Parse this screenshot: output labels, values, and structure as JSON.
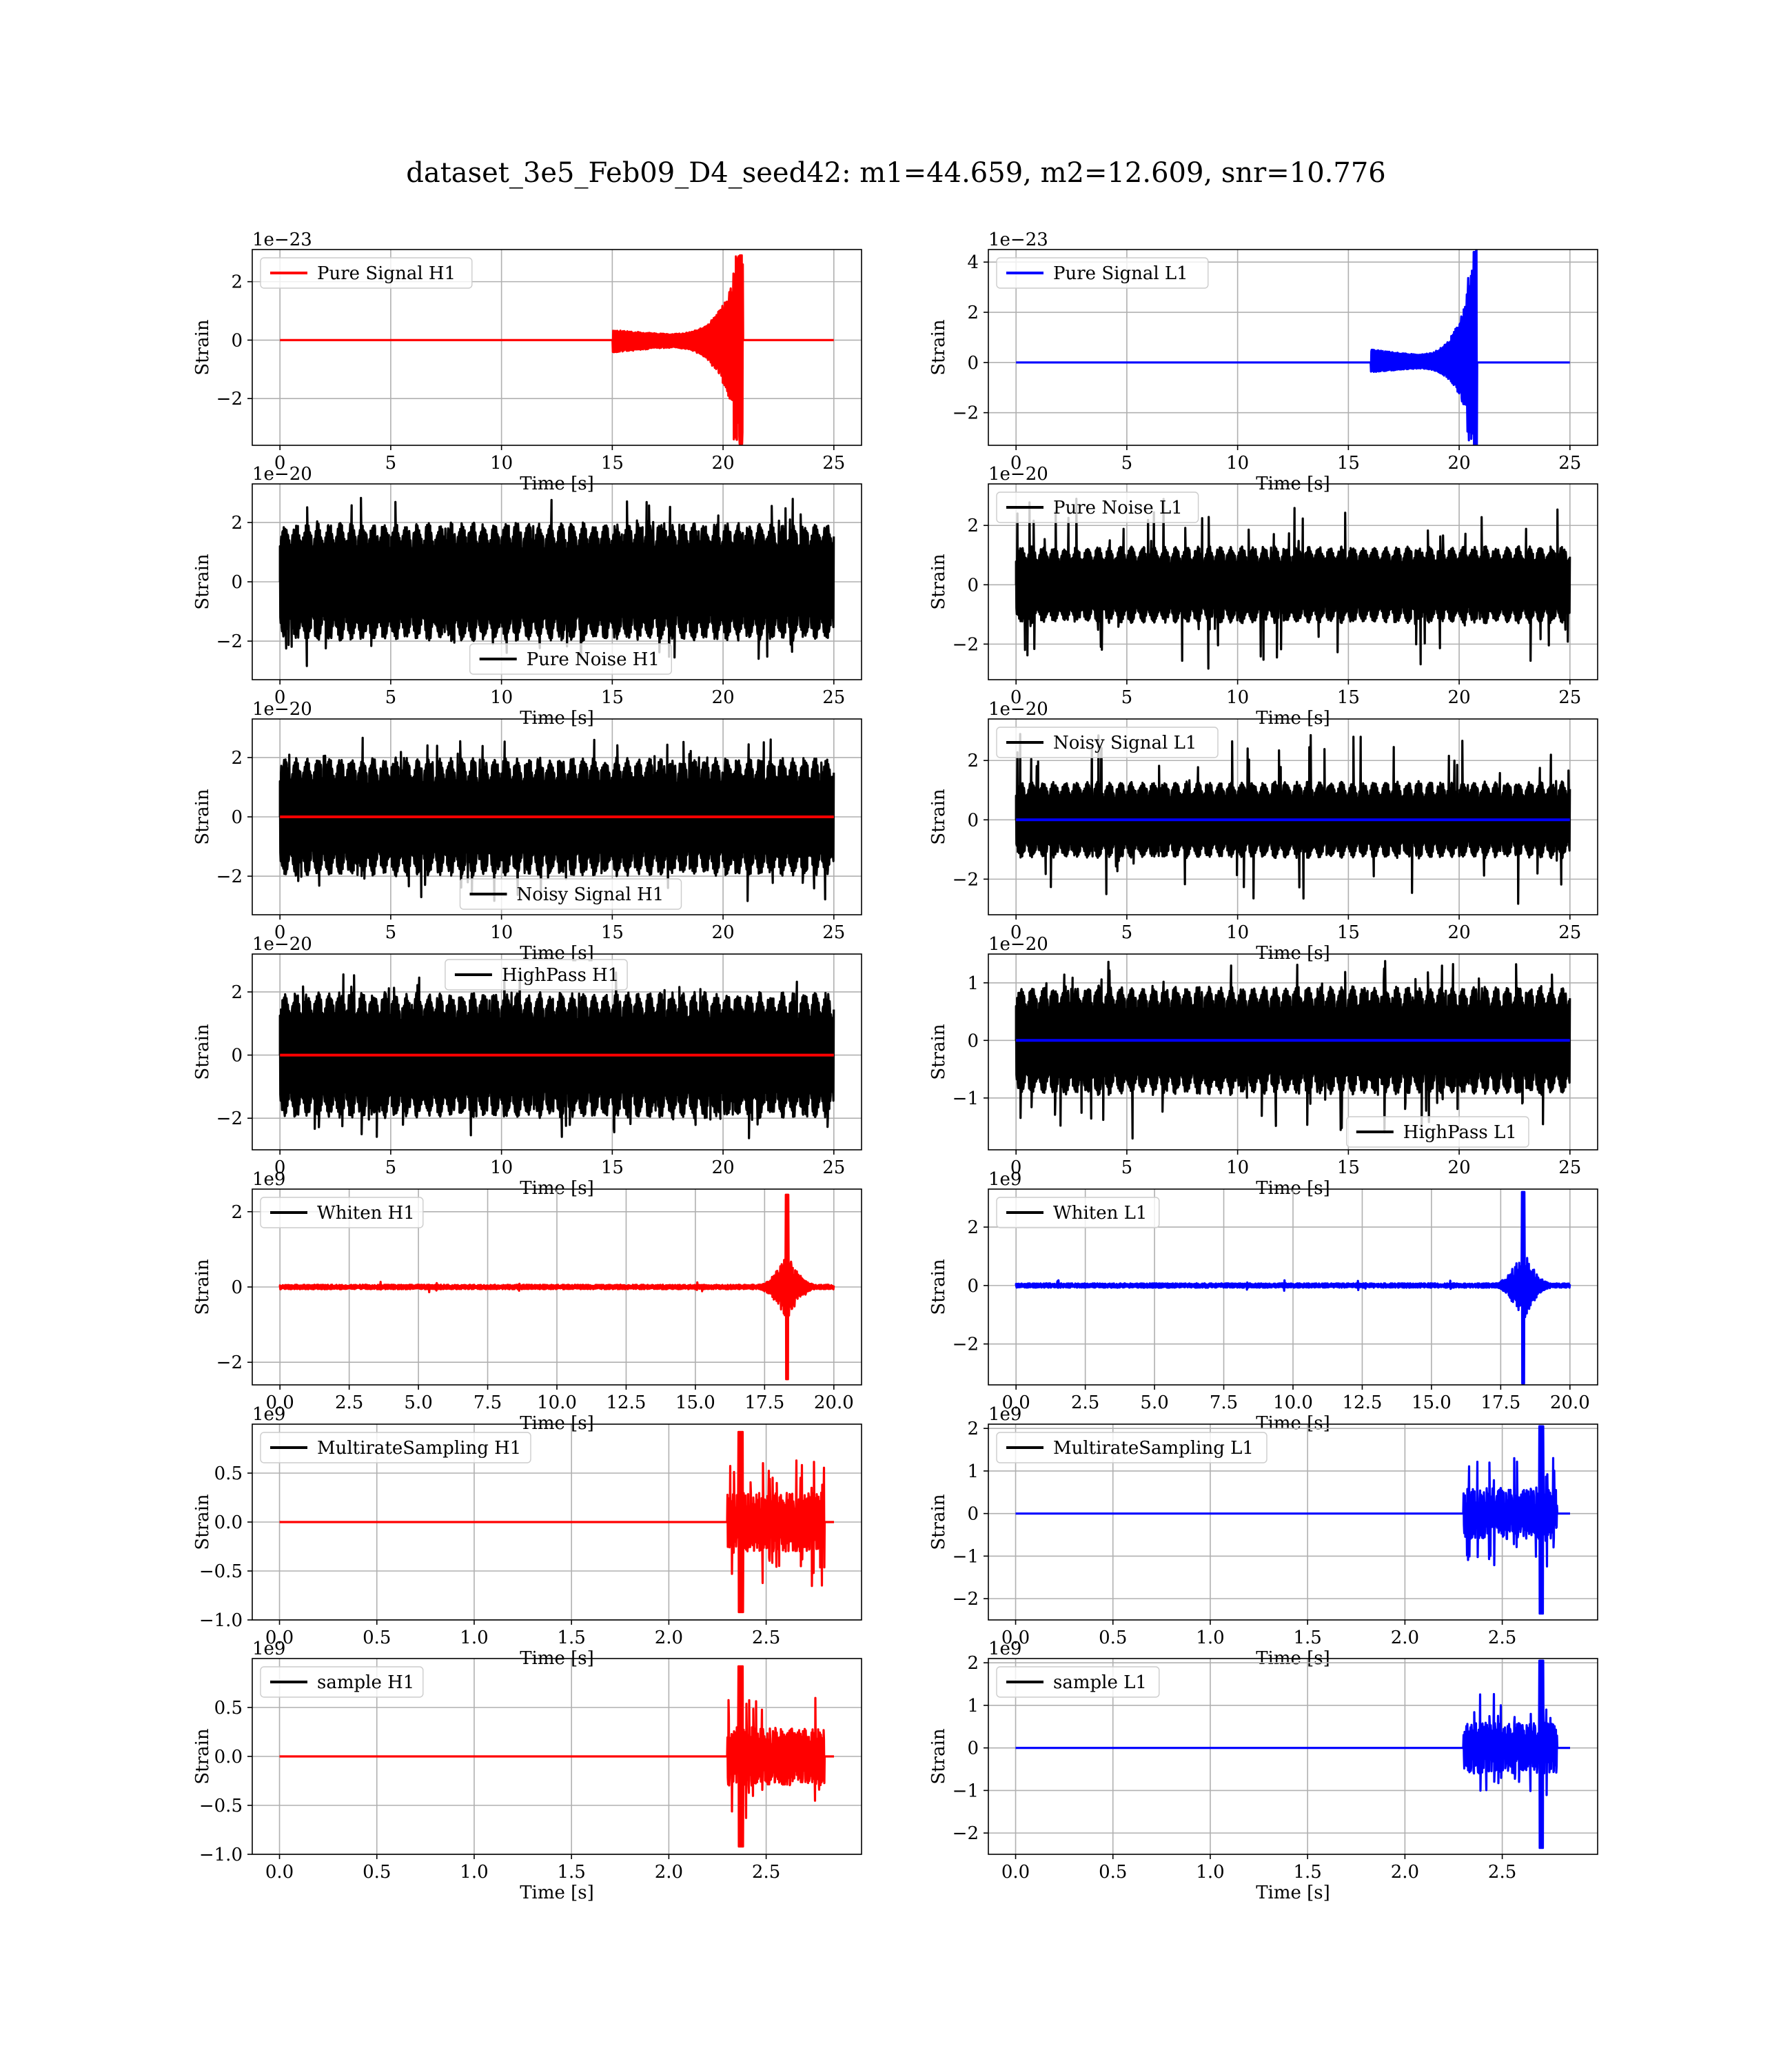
{
  "figure_title": "dataset_3e5_Feb09_D4_seed42: m1=44.659, m2=12.609, snr=10.776",
  "colors": {
    "H1": "#ff0000",
    "L1": "#0000ff",
    "noise": "#000000",
    "grid": "#b0b0b0"
  },
  "chart_data": [
    {
      "type": "line",
      "name": "pure-signal-h1",
      "legend": "Pure Signal H1",
      "legend_loc": "upper left",
      "legend_color": "#ff0000",
      "ylabel": "Strain",
      "xlabel": "Time [s]",
      "offset_text": "1e−23",
      "xlim": [
        -1.25,
        26.25
      ],
      "ylim": [
        -3.6,
        3.1
      ],
      "xticks": [
        0,
        5,
        10,
        15,
        20,
        25
      ],
      "xtick_labels": [
        "0",
        "5",
        "10",
        "15",
        "20",
        "25"
      ],
      "yticks": [
        -2,
        0,
        2
      ],
      "ytick_labels": [
        "−2",
        "0",
        "2"
      ],
      "grid": true,
      "series": [
        {
          "kind": "chirp",
          "color": "#ff0000",
          "x_range": [
            0,
            25
          ],
          "merger": 20.8,
          "amp_pos": 2.9,
          "amp_neg": -3.55,
          "onset": 15,
          "early_amp": 0.12
        }
      ]
    },
    {
      "type": "line",
      "name": "pure-signal-l1",
      "legend": "Pure Signal L1",
      "legend_loc": "upper left",
      "legend_color": "#0000ff",
      "ylabel": "Strain",
      "xlabel": "Time [s]",
      "offset_text": "1e−23",
      "xlim": [
        -1.25,
        26.25
      ],
      "ylim": [
        -3.3,
        4.5
      ],
      "xticks": [
        0,
        5,
        10,
        15,
        20,
        25
      ],
      "xtick_labels": [
        "0",
        "5",
        "10",
        "15",
        "20",
        "25"
      ],
      "yticks": [
        -2,
        0,
        2,
        4
      ],
      "ytick_labels": [
        "−2",
        "0",
        "2",
        "4"
      ],
      "grid": true,
      "series": [
        {
          "kind": "chirp",
          "color": "#0000ff",
          "x_range": [
            0,
            25
          ],
          "merger": 20.7,
          "amp_pos": 4.4,
          "amp_neg": -3.3,
          "onset": 16,
          "early_amp": 0.12
        }
      ]
    },
    {
      "type": "line",
      "name": "pure-noise-h1",
      "legend": "Pure Noise H1",
      "legend_loc": "lower center",
      "legend_color": "#000000",
      "ylabel": "Strain",
      "xlabel": "Time [s]",
      "offset_text": "1e−20",
      "xlim": [
        -1.25,
        26.25
      ],
      "ylim": [
        -3.3,
        3.3
      ],
      "xticks": [
        0,
        5,
        10,
        15,
        20,
        25
      ],
      "xtick_labels": [
        "0",
        "5",
        "10",
        "15",
        "20",
        "25"
      ],
      "yticks": [
        -2,
        0,
        2
      ],
      "ytick_labels": [
        "−2",
        "0",
        "2"
      ],
      "grid": true,
      "series": [
        {
          "kind": "noise",
          "color": "#000000",
          "x_range": [
            0,
            25
          ],
          "amp_pos": 3.0,
          "amp_neg": -3.1,
          "base": 2.0
        }
      ]
    },
    {
      "type": "line",
      "name": "pure-noise-l1",
      "legend": "Pure Noise L1",
      "legend_loc": "upper left",
      "legend_color": "#000000",
      "ylabel": "Strain",
      "xlabel": "Time [s]",
      "offset_text": "1e−20",
      "xlim": [
        -1.25,
        26.25
      ],
      "ylim": [
        -3.2,
        3.4
      ],
      "xticks": [
        0,
        5,
        10,
        15,
        20,
        25
      ],
      "xtick_labels": [
        "0",
        "5",
        "10",
        "15",
        "20",
        "25"
      ],
      "yticks": [
        -2,
        0,
        2
      ],
      "ytick_labels": [
        "−2",
        "0",
        "2"
      ],
      "grid": true,
      "series": [
        {
          "kind": "noise",
          "color": "#000000",
          "x_range": [
            0,
            25
          ],
          "amp_pos": 3.1,
          "amp_neg": -3.1,
          "base": 1.3
        }
      ]
    },
    {
      "type": "line",
      "name": "noisy-signal-h1",
      "legend": "Noisy Signal H1",
      "legend_loc": "lower center",
      "legend_color": "#000000",
      "ylabel": "Strain",
      "xlabel": "Time [s]",
      "offset_text": "1e−20",
      "xlim": [
        -1.25,
        26.25
      ],
      "ylim": [
        -3.3,
        3.3
      ],
      "xticks": [
        0,
        5,
        10,
        15,
        20,
        25
      ],
      "xtick_labels": [
        "0",
        "5",
        "10",
        "15",
        "20",
        "25"
      ],
      "yticks": [
        -2,
        0,
        2
      ],
      "ytick_labels": [
        "−2",
        "0",
        "2"
      ],
      "grid": true,
      "series": [
        {
          "kind": "noise",
          "color": "#000000",
          "x_range": [
            0,
            25
          ],
          "amp_pos": 3.0,
          "amp_neg": -3.1,
          "base": 2.0
        },
        {
          "kind": "flat",
          "color": "#ff0000",
          "x_range": [
            0,
            25
          ],
          "value": 0
        }
      ]
    },
    {
      "type": "line",
      "name": "noisy-signal-l1",
      "legend": "Noisy Signal L1",
      "legend_loc": "upper left",
      "legend_color": "#000000",
      "ylabel": "Strain",
      "xlabel": "Time [s]",
      "offset_text": "1e−20",
      "xlim": [
        -1.25,
        26.25
      ],
      "ylim": [
        -3.2,
        3.4
      ],
      "xticks": [
        0,
        5,
        10,
        15,
        20,
        25
      ],
      "xtick_labels": [
        "0",
        "5",
        "10",
        "15",
        "20",
        "25"
      ],
      "yticks": [
        -2,
        0,
        2
      ],
      "ytick_labels": [
        "−2",
        "0",
        "2"
      ],
      "grid": true,
      "series": [
        {
          "kind": "noise",
          "color": "#000000",
          "x_range": [
            0,
            25
          ],
          "amp_pos": 3.1,
          "amp_neg": -3.1,
          "base": 1.3
        },
        {
          "kind": "flat",
          "color": "#0000ff",
          "x_range": [
            0,
            25
          ],
          "value": 0
        }
      ]
    },
    {
      "type": "line",
      "name": "highpass-h1",
      "legend": "HighPass H1",
      "legend_loc": "upper center",
      "legend_color": "#000000",
      "ylabel": "Strain",
      "xlabel": "Time [s]",
      "offset_text": "1e−20",
      "xlim": [
        -1.25,
        26.25
      ],
      "ylim": [
        -3.0,
        3.2
      ],
      "xticks": [
        0,
        5,
        10,
        15,
        20,
        25
      ],
      "xtick_labels": [
        "0",
        "5",
        "10",
        "15",
        "20",
        "25"
      ],
      "yticks": [
        -2,
        0,
        2
      ],
      "ytick_labels": [
        "−2",
        "0",
        "2"
      ],
      "grid": true,
      "series": [
        {
          "kind": "noise",
          "color": "#000000",
          "x_range": [
            0,
            25
          ],
          "amp_pos": 3.0,
          "amp_neg": -2.9,
          "base": 2.0
        },
        {
          "kind": "flat",
          "color": "#ff0000",
          "x_range": [
            0,
            25
          ],
          "value": 0
        }
      ]
    },
    {
      "type": "line",
      "name": "highpass-l1",
      "legend": "HighPass L1",
      "legend_loc": "lower right",
      "legend_color": "#000000",
      "ylabel": "Strain",
      "xlabel": "Time [s]",
      "offset_text": "1e−20",
      "xlim": [
        -1.25,
        26.25
      ],
      "ylim": [
        -1.9,
        1.5
      ],
      "xticks": [
        0,
        5,
        10,
        15,
        20,
        25
      ],
      "xtick_labels": [
        "0",
        "5",
        "10",
        "15",
        "20",
        "25"
      ],
      "yticks": [
        -1,
        0,
        1
      ],
      "ytick_labels": [
        "−1",
        "0",
        "1"
      ],
      "grid": true,
      "series": [
        {
          "kind": "noise",
          "color": "#000000",
          "x_range": [
            0,
            25
          ],
          "amp_pos": 1.45,
          "amp_neg": -1.8,
          "base": 0.95
        },
        {
          "kind": "flat",
          "color": "#0000ff",
          "x_range": [
            0,
            25
          ],
          "value": 0
        }
      ]
    },
    {
      "type": "line",
      "name": "whiten-h1",
      "legend": "Whiten H1",
      "legend_loc": "upper left",
      "legend_color": "#000000",
      "ylabel": "Strain",
      "xlabel": "Time [s]",
      "offset_text": "1e9",
      "xlim": [
        -1.0,
        21.0
      ],
      "ylim": [
        -2.6,
        2.6
      ],
      "xticks": [
        0,
        2.5,
        5,
        7.5,
        10,
        12.5,
        15,
        17.5,
        20
      ],
      "xtick_labels": [
        "0.0",
        "2.5",
        "5.0",
        "7.5",
        "10.0",
        "12.5",
        "15.0",
        "17.5",
        "20.0"
      ],
      "yticks": [
        -2,
        0,
        2
      ],
      "ytick_labels": [
        "−2",
        "0",
        "2"
      ],
      "grid": true,
      "series": [
        {
          "kind": "burst",
          "color": "#ff0000",
          "x_range": [
            0,
            20
          ],
          "center": 18.3,
          "width": 1.1,
          "peak_pos": 2.45,
          "peak_neg": -2.45,
          "bulk": 0.9,
          "floor": 0.04
        }
      ]
    },
    {
      "type": "line",
      "name": "whiten-l1",
      "legend": "Whiten L1",
      "legend_loc": "upper left",
      "legend_color": "#000000",
      "ylabel": "Strain",
      "xlabel": "Time [s]",
      "offset_text": "1e9",
      "xlim": [
        -1.0,
        21.0
      ],
      "ylim": [
        -3.4,
        3.3
      ],
      "xticks": [
        0,
        2.5,
        5,
        7.5,
        10,
        12.5,
        15,
        17.5,
        20
      ],
      "xtick_labels": [
        "0.0",
        "2.5",
        "5.0",
        "7.5",
        "10.0",
        "12.5",
        "15.0",
        "17.5",
        "20.0"
      ],
      "yticks": [
        -2,
        0,
        2
      ],
      "ytick_labels": [
        "−2",
        "0",
        "2"
      ],
      "grid": true,
      "series": [
        {
          "kind": "burst",
          "color": "#0000ff",
          "x_range": [
            0,
            20
          ],
          "center": 18.3,
          "width": 1.1,
          "peak_pos": 3.2,
          "peak_neg": -3.35,
          "bulk": 1.2,
          "floor": 0.05
        }
      ]
    },
    {
      "type": "line",
      "name": "multirate-sampling-h1",
      "legend": "MultirateSampling H1",
      "legend_loc": "upper left",
      "legend_color": "#000000",
      "ylabel": "Strain",
      "xlabel": "Time [s]",
      "offset_text": "1e9",
      "xlim": [
        -0.14,
        2.99
      ],
      "ylim": [
        -1.0,
        1.0
      ],
      "xticks": [
        0,
        0.5,
        1.0,
        1.5,
        2.0,
        2.5
      ],
      "xtick_labels": [
        "0.0",
        "0.5",
        "1.0",
        "1.5",
        "2.0",
        "2.5"
      ],
      "yticks": [
        -1.0,
        -0.5,
        0,
        0.5
      ],
      "ytick_labels": [
        "−1.0",
        "−0.5",
        "0.0",
        "0.5"
      ],
      "grid": true,
      "series": [
        {
          "kind": "segment_burst",
          "color": "#ff0000",
          "x_range": [
            0,
            2.85
          ],
          "burst_range": [
            2.3,
            2.8
          ],
          "peak_pos": 0.92,
          "peak_neg": -0.92,
          "bulk": 0.3,
          "spike_x": 2.37
        }
      ]
    },
    {
      "type": "line",
      "name": "multirate-sampling-l1",
      "legend": "MultirateSampling L1",
      "legend_loc": "upper left",
      "legend_color": "#000000",
      "ylabel": "Strain",
      "xlabel": "Time [s]",
      "offset_text": "1e9",
      "xlim": [
        -0.14,
        2.99
      ],
      "ylim": [
        -2.5,
        2.1
      ],
      "xticks": [
        0,
        0.5,
        1.0,
        1.5,
        2.0,
        2.5
      ],
      "xtick_labels": [
        "0.0",
        "0.5",
        "1.0",
        "1.5",
        "2.0",
        "2.5"
      ],
      "yticks": [
        -2,
        -1,
        0,
        1,
        2
      ],
      "ytick_labels": [
        "−2",
        "−1",
        "0",
        "1",
        "2"
      ],
      "grid": true,
      "series": [
        {
          "kind": "segment_burst",
          "color": "#0000ff",
          "x_range": [
            0,
            2.85
          ],
          "burst_range": [
            2.3,
            2.78
          ],
          "peak_pos": 2.05,
          "peak_neg": -2.35,
          "bulk": 0.6,
          "spike_x": 2.7
        }
      ]
    },
    {
      "type": "line",
      "name": "sample-h1",
      "legend": "sample H1",
      "legend_loc": "upper left",
      "legend_color": "#000000",
      "ylabel": "Strain",
      "xlabel": "Time [s]",
      "offset_text": "1e9",
      "xlim": [
        -0.14,
        2.99
      ],
      "ylim": [
        -1.0,
        1.0
      ],
      "xticks": [
        0,
        0.5,
        1.0,
        1.5,
        2.0,
        2.5
      ],
      "xtick_labels": [
        "0.0",
        "0.5",
        "1.0",
        "1.5",
        "2.0",
        "2.5"
      ],
      "yticks": [
        -1.0,
        -0.5,
        0,
        0.5
      ],
      "ytick_labels": [
        "−1.0",
        "−0.5",
        "0.0",
        "0.5"
      ],
      "grid": true,
      "series": [
        {
          "kind": "segment_burst",
          "color": "#ff0000",
          "x_range": [
            0,
            2.85
          ],
          "burst_range": [
            2.3,
            2.8
          ],
          "peak_pos": 0.92,
          "peak_neg": -0.92,
          "bulk": 0.3,
          "spike_x": 2.37
        }
      ]
    },
    {
      "type": "line",
      "name": "sample-l1",
      "legend": "sample L1",
      "legend_loc": "upper left",
      "legend_color": "#000000",
      "ylabel": "Strain",
      "xlabel": "Time [s]",
      "offset_text": "1e9",
      "xlim": [
        -0.14,
        2.99
      ],
      "ylim": [
        -2.5,
        2.1
      ],
      "xticks": [
        0,
        0.5,
        1.0,
        1.5,
        2.0,
        2.5
      ],
      "xtick_labels": [
        "0.0",
        "0.5",
        "1.0",
        "1.5",
        "2.0",
        "2.5"
      ],
      "yticks": [
        -2,
        -1,
        0,
        1,
        2
      ],
      "ytick_labels": [
        "−2",
        "−1",
        "0",
        "1",
        "2"
      ],
      "grid": true,
      "series": [
        {
          "kind": "segment_burst",
          "color": "#0000ff",
          "x_range": [
            0,
            2.85
          ],
          "burst_range": [
            2.3,
            2.78
          ],
          "peak_pos": 2.05,
          "peak_neg": -2.35,
          "bulk": 0.6,
          "spike_x": 2.7
        }
      ]
    }
  ]
}
